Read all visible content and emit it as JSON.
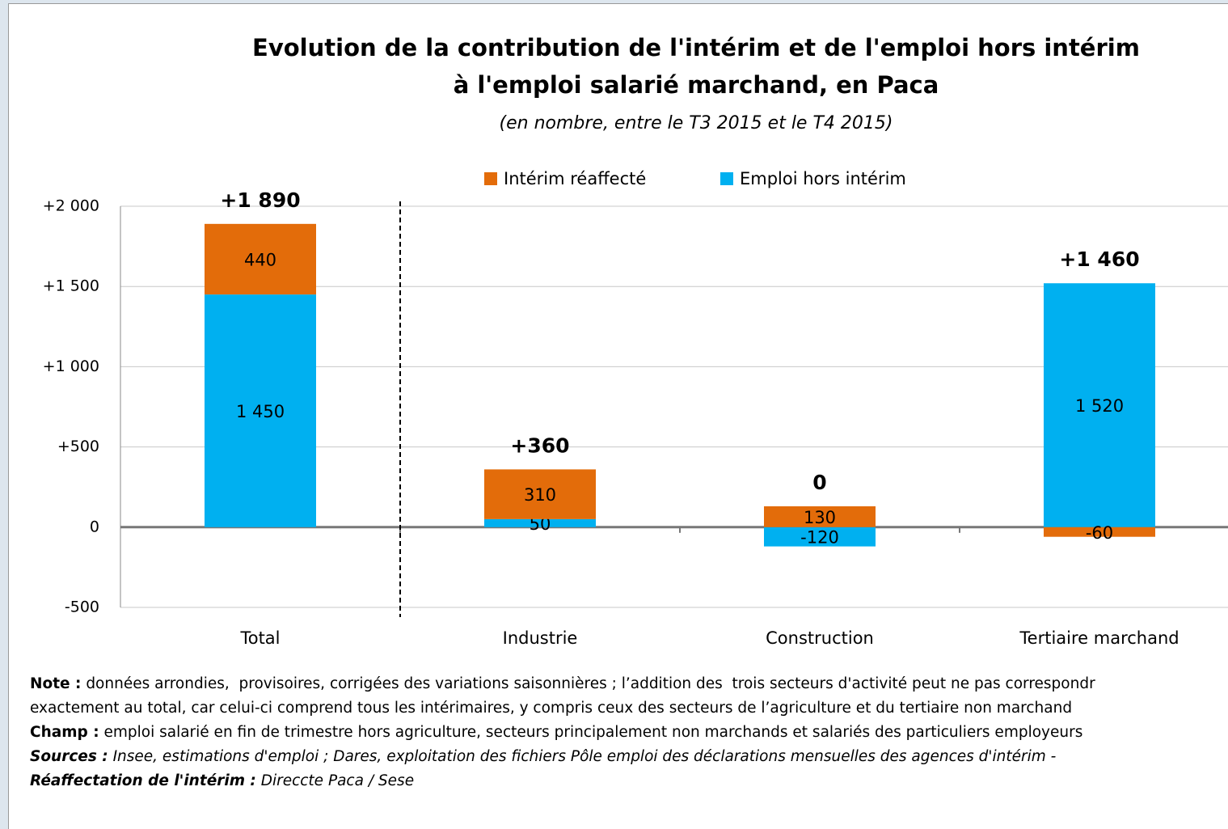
{
  "chart_data": {
    "type": "stacked-bar",
    "title": [
      "Evolution de la contribution de l'intérim et de l'emploi hors intérim",
      "à l'emploi salarié marchand, en Paca"
    ],
    "subtitle": "(en nombre, entre le T3 2015 et le T4 2015)",
    "categories": [
      "Total",
      "Industrie",
      "Construction",
      "Tertiaire marchand"
    ],
    "series": [
      {
        "name": "Emploi hors intérim",
        "color": "#00b0f0",
        "values": [
          1450,
          50,
          -120,
          1520
        ],
        "value_labels": [
          "1 450",
          "50",
          "-120",
          "1 520"
        ]
      },
      {
        "name": "Intérim réaffecté",
        "color": "#e36c0a",
        "values": [
          440,
          310,
          130,
          -60
        ]
      }
    ],
    "legend_order": [
      1,
      0
    ],
    "totals": {
      "values": [
        1890,
        360,
        0,
        1460
      ],
      "value_labels": [
        "+1 890",
        "+360",
        "0",
        "+1 460"
      ]
    },
    "ylim": [
      -500,
      2000
    ],
    "yticks": [
      -500,
      0,
      {
        "value": 500,
        "label": "+500"
      },
      {
        "value": 1000,
        "label": "+1 000"
      },
      {
        "value": 1500,
        "label": "+1 500"
      },
      {
        "value": 2000,
        "label": "+2 000"
      }
    ],
    "grid": true,
    "legend": "top",
    "notes": [
      {
        "label": "Note :",
        "text": " données arrondies,  provisoires, corrigées des variations saisonnières ; l’addition des  trois secteurs d'activité peut ne pas correspondr"
      },
      {
        "text": "exactement au total, car celui-ci comprend tous les intérimaires, y compris ceux des secteurs de l’agriculture et du tertiaire non marchand"
      },
      {
        "label": "Champ :",
        "text": " emploi salarié en fin de trimestre hors agriculture, secteurs principalement non marchands et salariés des particuliers employeurs"
      },
      {
        "label": "Sources :",
        "text": " Insee, estimations d'emploi ; Dares, exploitation des fichiers Pôle emploi des déclarations mensuelles des agences d'intérim -",
        "italic": true
      },
      {
        "label": "Réaffectation de l'intérim :",
        "text": " Direccte Paca / Sese",
        "italic": true
      }
    ]
  }
}
